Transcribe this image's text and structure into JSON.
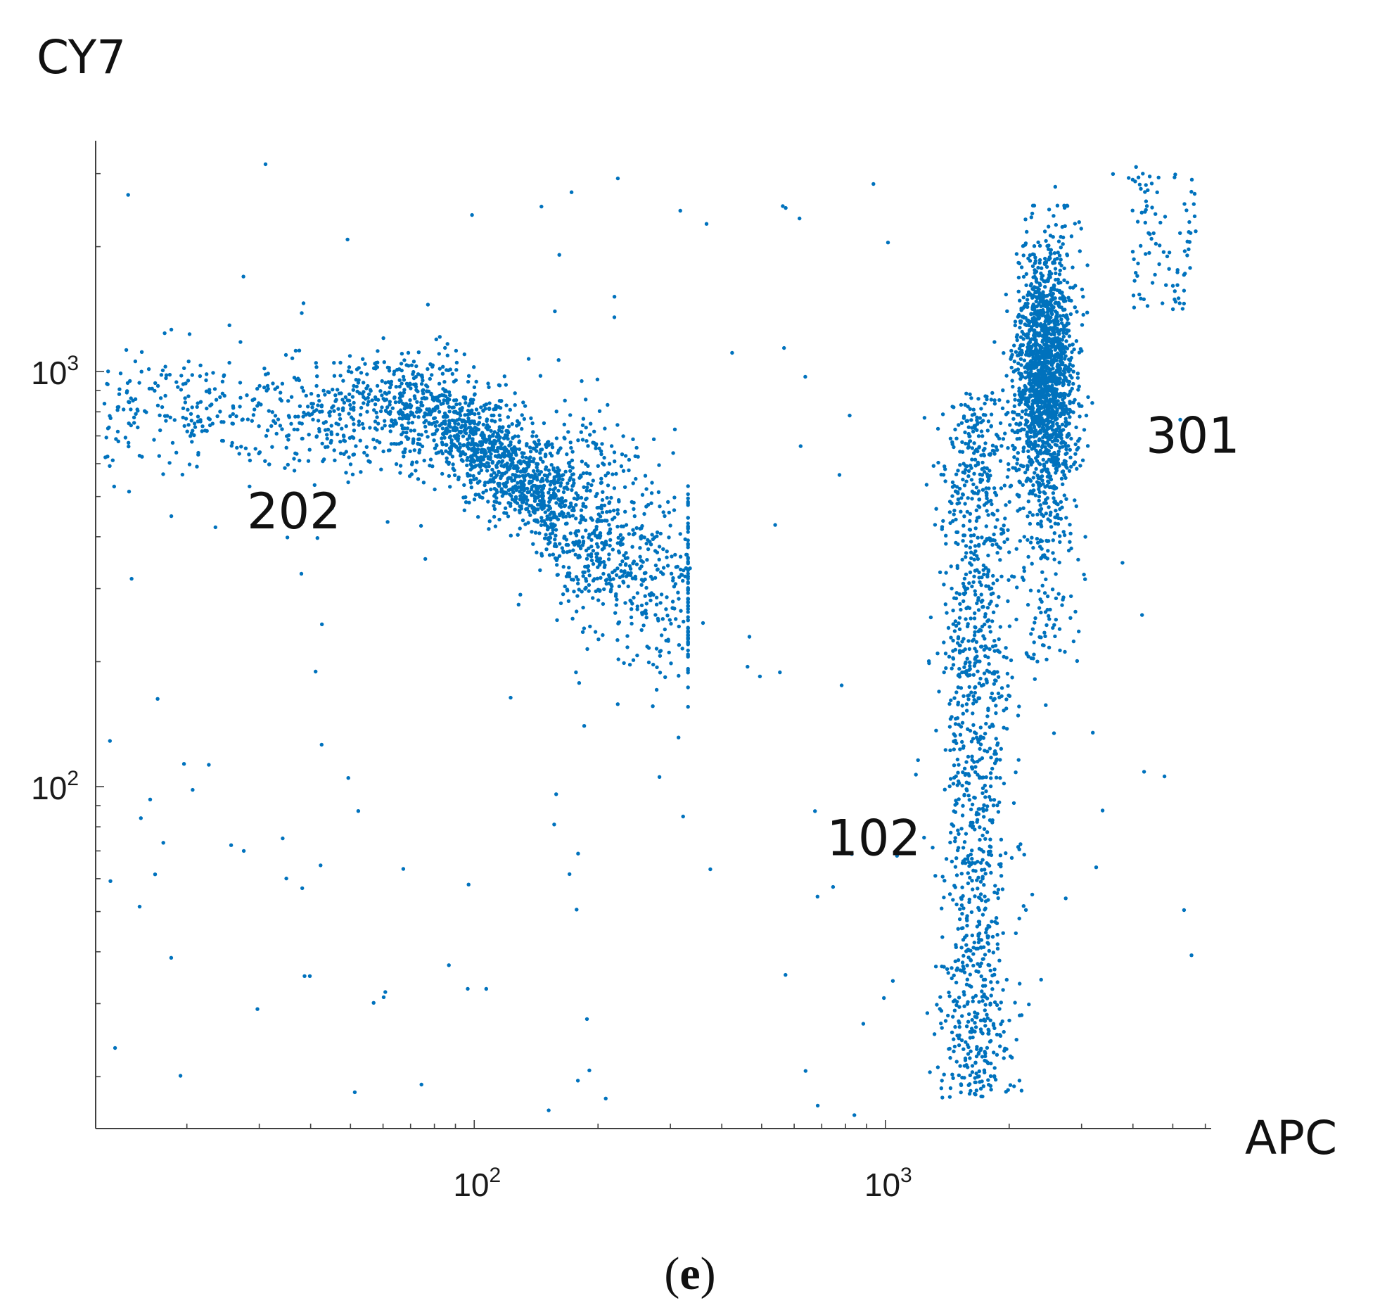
{
  "chart_data": {
    "type": "scatter",
    "title": "",
    "xlabel": "APC",
    "ylabel": "CY7",
    "x_scale": "log",
    "y_scale": "log",
    "xlim": [
      12,
      6200
    ],
    "ylim": [
      15,
      3600
    ],
    "x_ticks": [
      {
        "value": 100,
        "base": "10",
        "exp": "2"
      },
      {
        "value": 1000,
        "base": "10",
        "exp": "3"
      }
    ],
    "y_ticks": [
      {
        "value": 100,
        "base": "10",
        "exp": "2"
      },
      {
        "value": 1000,
        "base": "10",
        "exp": "3"
      }
    ],
    "grid": false,
    "marker_color": "#0072BD",
    "annotations": [
      {
        "text": "202",
        "x": 28,
        "y": 460
      },
      {
        "text": "301",
        "x": 4300,
        "y": 700
      },
      {
        "text": "102",
        "x": 720,
        "y": 75
      }
    ],
    "panel_label": {
      "open": "(",
      "letter": "e",
      "close": ")"
    },
    "clusters": [
      {
        "label": "202",
        "x_range": [
          12,
          320
        ],
        "y_range": [
          150,
          1300
        ],
        "center_x": 140,
        "center_y": 700
      },
      {
        "label": "301",
        "x_range": [
          2000,
          3100
        ],
        "y_range": [
          300,
          2500
        ],
        "center_x": 2500,
        "center_y": 1050
      },
      {
        "label": "102",
        "x_range": [
          1300,
          2000
        ],
        "y_range": [
          16,
          900
        ],
        "center_x": 1650,
        "center_y": 160
      },
      {
        "label": "",
        "x_range": [
          3600,
          6000
        ],
        "y_range": [
          1300,
          3200
        ],
        "center_x": 4500,
        "center_y": 2200
      }
    ]
  }
}
